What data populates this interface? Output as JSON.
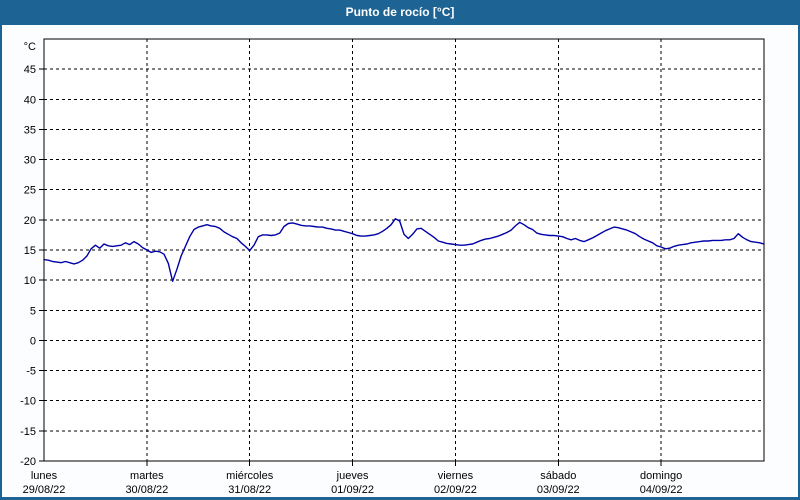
{
  "title": "Punto de rocío [°C]",
  "colors": {
    "titlebar_bg": "#1d6393",
    "titlebar_text": "#ffffff",
    "body_bg": "#fbfdff",
    "widget_border": "#1d6393",
    "plot_bg": "#ffffff",
    "plot_border": "#000000",
    "grid": "#000000",
    "line": "#0000a8",
    "label": "#000000"
  },
  "chart_data": {
    "type": "line",
    "title": "Punto de rocío [°C]",
    "unit_label": "°C",
    "ylim": [
      -20,
      50
    ],
    "y_ticks": [
      45,
      40,
      35,
      30,
      25,
      20,
      15,
      10,
      5,
      0,
      -5,
      -10,
      -15,
      -20
    ],
    "grid": true,
    "legend_position": "none",
    "x_axis": {
      "total_hours": 168,
      "days": [
        {
          "name": "lunes",
          "date": "29/08/22"
        },
        {
          "name": "martes",
          "date": "30/08/22"
        },
        {
          "name": "miércoles",
          "date": "31/08/22"
        },
        {
          "name": "jueves",
          "date": "01/09/22"
        },
        {
          "name": "viernes",
          "date": "02/09/22"
        },
        {
          "name": "sábado",
          "date": "03/09/22"
        },
        {
          "name": "domingo",
          "date": "04/09/22"
        }
      ]
    },
    "series": [
      {
        "name": "Punto de rocío",
        "unit": "°C",
        "start_hour": 0,
        "step_hours": 1,
        "values": [
          13.4,
          13.3,
          13.1,
          13.0,
          12.9,
          13.1,
          12.9,
          12.7,
          12.9,
          13.3,
          14.0,
          15.2,
          15.8,
          15.3,
          16.0,
          15.7,
          15.6,
          15.7,
          15.8,
          16.2,
          15.9,
          16.4,
          16.0,
          15.4,
          15.0,
          14.6,
          14.8,
          14.7,
          14.3,
          12.8,
          9.8,
          11.8,
          14.0,
          15.6,
          17.2,
          18.4,
          18.8,
          19.0,
          19.2,
          19.0,
          18.9,
          18.6,
          18.0,
          17.6,
          17.2,
          16.9,
          16.2,
          15.6,
          14.9,
          15.8,
          17.2,
          17.5,
          17.5,
          17.4,
          17.5,
          17.8,
          18.9,
          19.4,
          19.5,
          19.3,
          19.1,
          19.0,
          19.0,
          18.9,
          18.8,
          18.8,
          18.6,
          18.5,
          18.3,
          18.3,
          18.1,
          17.9,
          17.7,
          17.4,
          17.3,
          17.3,
          17.4,
          17.5,
          17.7,
          18.1,
          18.6,
          19.2,
          20.2,
          19.8,
          17.6,
          16.9,
          17.6,
          18.5,
          18.6,
          18.1,
          17.6,
          17.1,
          16.5,
          16.3,
          16.1,
          16.0,
          15.9,
          15.8,
          15.8,
          15.9,
          16.0,
          16.3,
          16.6,
          16.8,
          16.9,
          17.1,
          17.3,
          17.6,
          17.9,
          18.3,
          19.0,
          19.6,
          19.2,
          18.7,
          18.4,
          17.8,
          17.6,
          17.5,
          17.4,
          17.4,
          17.3,
          17.2,
          16.9,
          16.7,
          16.9,
          16.6,
          16.4,
          16.7,
          17.0,
          17.4,
          17.8,
          18.2,
          18.5,
          18.8,
          18.7,
          18.5,
          18.3,
          18.0,
          17.7,
          17.2,
          16.8,
          16.5,
          16.2,
          15.7,
          15.5,
          15.2,
          15.3,
          15.6,
          15.8,
          15.9,
          16.0,
          16.2,
          16.3,
          16.4,
          16.5,
          16.5,
          16.6,
          16.6,
          16.6,
          16.7,
          16.7,
          16.9,
          17.7,
          17.1,
          16.7,
          16.4,
          16.3,
          16.2,
          16.0
        ]
      }
    ]
  }
}
